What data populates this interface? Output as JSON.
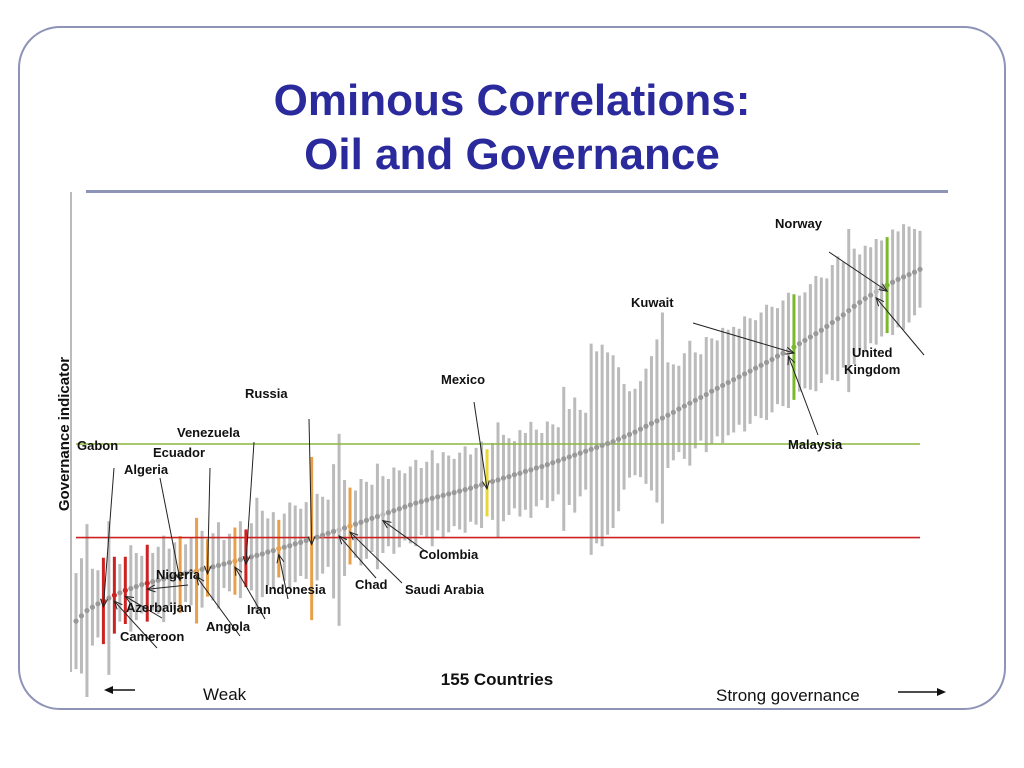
{
  "slide": {
    "title_line1": "Ominous Correlations:",
    "title_line2": "Oil and Governance"
  },
  "chart_data": {
    "type": "scatter",
    "ylabel": "Governance indicator",
    "xlabel": "155 Countries",
    "x_left_label": "Weak",
    "x_right_label": "Strong governance",
    "n_countries": 155,
    "ylim": [
      0,
      100
    ],
    "grid": false,
    "estimates": [
      10.6,
      11.7,
      12.8,
      13.5,
      14.2,
      14.8,
      15.4,
      16.0,
      16.5,
      17.0,
      17.4,
      17.8,
      18.2,
      18.5,
      18.8,
      19.1,
      19.4,
      19.7,
      20.0,
      20.3,
      20.6,
      20.9,
      21.1,
      21.4,
      21.7,
      21.9,
      22.2,
      22.5,
      22.8,
      23.1,
      23.4,
      23.7,
      24.0,
      24.3,
      24.6,
      25.0,
      25.3,
      25.7,
      26.0,
      26.3,
      26.7,
      27.0,
      27.4,
      27.8,
      28.1,
      28.5,
      28.9,
      29.3,
      29.6,
      30.0,
      30.4,
      30.8,
      31.2,
      31.6,
      32.0,
      32.4,
      32.8,
      33.2,
      33.6,
      34.0,
      34.4,
      34.8,
      35.2,
      35.5,
      35.8,
      36.2,
      36.5,
      36.8,
      37.1,
      37.4,
      37.7,
      38.0,
      38.3,
      38.7,
      39.0,
      39.4,
      39.7,
      40.0,
      40.4,
      40.7,
      41.1,
      41.4,
      41.8,
      42.1,
      42.5,
      42.8,
      43.2,
      43.6,
      44.0,
      44.4,
      44.8,
      45.2,
      45.6,
      46.0,
      46.4,
      46.8,
      47.2,
      47.6,
      48.0,
      48.5,
      49.0,
      49.5,
      50.0,
      50.6,
      51.2,
      51.8,
      52.3,
      52.9,
      53.5,
      54.1,
      54.8,
      55.4,
      56.0,
      56.6,
      57.2,
      57.8,
      58.5,
      59.1,
      59.7,
      60.3,
      60.9,
      61.5,
      62.1,
      62.7,
      63.3,
      63.9,
      64.5,
      65.1,
      65.8,
      66.4,
      67.0,
      67.7,
      68.4,
      69.1,
      69.8,
      70.5,
      71.2,
      72.0,
      72.8,
      73.6,
      74.4,
      75.3,
      76.2,
      77.0,
      77.8,
      78.5,
      79.2,
      79.9,
      80.6,
      81.2,
      81.8,
      82.3,
      82.8,
      83.3,
      83.9
    ],
    "interval_halfwidths": [
      10,
      12,
      18,
      8,
      7,
      9,
      16,
      8,
      6,
      7,
      9,
      7,
      6,
      8,
      6,
      7,
      9,
      6,
      7,
      8,
      6,
      7,
      11,
      8,
      6,
      7,
      9,
      5,
      6,
      7,
      8,
      6,
      7,
      12,
      9,
      7,
      8,
      6,
      7,
      9,
      8,
      7,
      8,
      17,
      9,
      8,
      7,
      14,
      20,
      10,
      8,
      7,
      9,
      8,
      7,
      11,
      8,
      7,
      9,
      8,
      7,
      8,
      9,
      7,
      8,
      10,
      7,
      9,
      8,
      7,
      8,
      9,
      7,
      8,
      9,
      7,
      8,
      12,
      9,
      8,
      7,
      9,
      8,
      10,
      8,
      7,
      9,
      8,
      7,
      15,
      10,
      12,
      9,
      8,
      22,
      20,
      21,
      19,
      18,
      15,
      11,
      9,
      9,
      10,
      12,
      14,
      17,
      22,
      11,
      10,
      9,
      11,
      13,
      10,
      9,
      12,
      11,
      10,
      12,
      11,
      11,
      10,
      12,
      11,
      10,
      11,
      12,
      11,
      10,
      11,
      12,
      11,
      10,
      10,
      11,
      12,
      11,
      10,
      12,
      13,
      11,
      17,
      12,
      10,
      11,
      10,
      11,
      10,
      10,
      11,
      10,
      11,
      10,
      9,
      8
    ],
    "reference_lines": [
      {
        "color": "#cc2222",
        "y": 28.0
      },
      {
        "color": "#8cb83c",
        "y": 47.5
      }
    ],
    "highlighted_countries": [
      {
        "name": "Gabon",
        "index": 5,
        "group": "red"
      },
      {
        "name": "Cameroon",
        "index": 7,
        "group": "red"
      },
      {
        "name": "Azerbaijan",
        "index": 9,
        "group": "red"
      },
      {
        "name": "Nigeria",
        "index": 13,
        "group": "red"
      },
      {
        "name": "Algeria",
        "index": 19,
        "group": "orange"
      },
      {
        "name": "Angola",
        "index": 22,
        "group": "orange"
      },
      {
        "name": "Ecuador",
        "index": 24,
        "group": "orange"
      },
      {
        "name": "Iran",
        "index": 29,
        "group": "orange"
      },
      {
        "name": "Venezuela",
        "index": 31,
        "group": "red"
      },
      {
        "name": "Indonesia",
        "index": 37,
        "group": "orange"
      },
      {
        "name": "Russia",
        "index": 43,
        "group": "orange"
      },
      {
        "name": "Chad",
        "index": 48,
        "group": "gray"
      },
      {
        "name": "Saudi Arabia",
        "index": 50,
        "group": "orange"
      },
      {
        "name": "Colombia",
        "index": 56,
        "group": "gray"
      },
      {
        "name": "Mexico",
        "index": 75,
        "group": "yellow"
      },
      {
        "name": "Malaysia",
        "index": 130,
        "group": "gray"
      },
      {
        "name": "Kuwait",
        "index": 131,
        "group": "green"
      },
      {
        "name": "United Kingdom",
        "index": 146,
        "group": "gray"
      },
      {
        "name": "Norway",
        "index": 148,
        "group": "green"
      }
    ],
    "colors": {
      "interval": "#bbbbbb",
      "estimate": "#999999",
      "red": "#cc2222",
      "orange": "#e8a04a",
      "yellow": "#e8d63a",
      "green": "#7ab82c",
      "axis": "#777777"
    }
  }
}
